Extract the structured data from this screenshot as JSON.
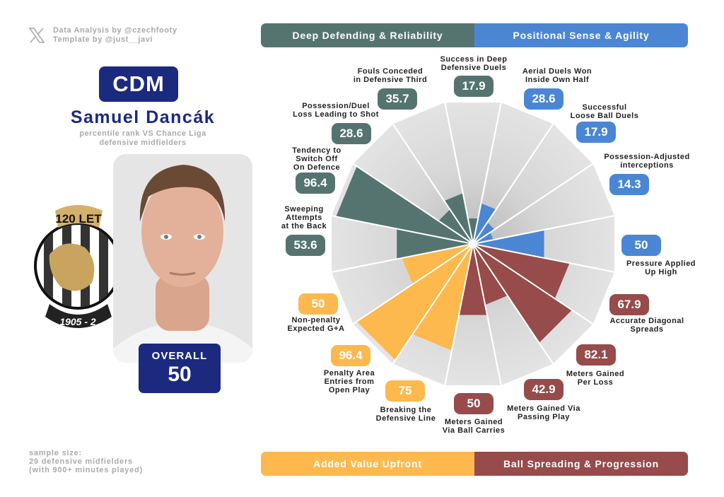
{
  "credits": {
    "line1": "Data Analysis by @czechfooty",
    "line2": "Template by @just__javi"
  },
  "player": {
    "position": "CDM",
    "name": "Samuel Dancák",
    "subtitle_1": "percentile rank VS Chance Liga",
    "subtitle_2": "defensive midfielders",
    "overall_label": "OVERALL",
    "overall_value": "50"
  },
  "club_logo": {
    "top_text": "120 LET",
    "bottom_text": "1905 - 2"
  },
  "sample": {
    "line1": "sample size:",
    "line2": "29 defensive midfielders",
    "line3": "(with 900+ minutes played)"
  },
  "colors": {
    "deep": "#557470",
    "positional": "#4a86d4",
    "spreading": "#974b4b",
    "upfront": "#fdb94d",
    "navy": "#1b2a7e"
  },
  "chart_data": {
    "type": "pie",
    "subtype": "pizza (polar bar) chart",
    "range": [
      0,
      100
    ],
    "categories": [
      {
        "name": "Deep Defending & Reliability",
        "color": "#557470"
      },
      {
        "name": "Positional Sense & Agility",
        "color": "#4a86d4"
      },
      {
        "name": "Added Value Upfront",
        "color": "#fdb94d"
      },
      {
        "name": "Ball Spreading & Progression",
        "color": "#974b4b"
      }
    ],
    "slices": [
      {
        "label": "Success in Deep\nDefensive Duels",
        "value": 17.9,
        "display": "17.9",
        "group": 0
      },
      {
        "label": "Aerial Duels Won\nInside Own Half",
        "value": 28.6,
        "display": "28.6",
        "group": 1
      },
      {
        "label": "Successful\nLoose Ball Duels",
        "value": 17.9,
        "display": "17.9",
        "group": 1
      },
      {
        "label": "Possession-Adjusted\ninterceptions",
        "value": 14.3,
        "display": "14.3",
        "group": 1
      },
      {
        "label": "Pressure Applied\nUp High",
        "value": 50,
        "display": "50",
        "group": 1
      },
      {
        "label": "Accurate Diagonal\nSpreads",
        "value": 67.9,
        "display": "67.9",
        "group": 3
      },
      {
        "label": "Meters Gained\nPer Loss",
        "value": 82.1,
        "display": "82.1",
        "group": 3
      },
      {
        "label": "Meters Gained Via\nPassing Play",
        "value": 42.9,
        "display": "42.9",
        "group": 3
      },
      {
        "label": "Meters Gained\nVia Ball Carries",
        "value": 50,
        "display": "50",
        "group": 3
      },
      {
        "label": "Breaking the\nDefensive Line",
        "value": 75,
        "display": "75",
        "group": 2
      },
      {
        "label": "Penalty Area\nEntries from\nOpen Play",
        "value": 96.4,
        "display": "96.4",
        "group": 2
      },
      {
        "label": "Non-penalty\nExpected G+A",
        "value": 50,
        "display": "50",
        "group": 2
      },
      {
        "label": "Sweeping\nAttempts\nat the Back",
        "value": 53.6,
        "display": "53.6",
        "group": 0
      },
      {
        "label": "Tendency to\nSwitch Off\nOn Defence",
        "value": 96.4,
        "display": "96.4",
        "group": 0
      },
      {
        "label": "Possession/Duel\nLoss Leading to Shot",
        "value": 28.6,
        "display": "28.6",
        "group": 0
      },
      {
        "label": "Fouls Conceded\nin Defensive Third",
        "value": 35.7,
        "display": "35.7",
        "group": 0
      }
    ]
  }
}
